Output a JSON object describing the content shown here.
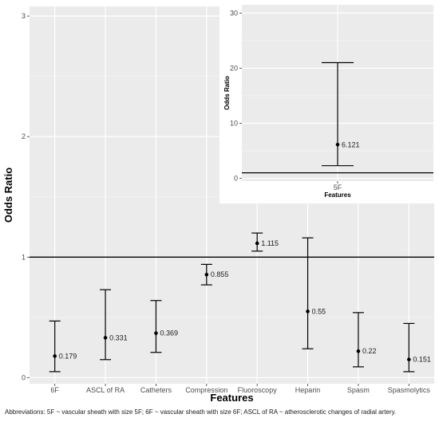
{
  "chart_data": [
    {
      "type": "errorbar",
      "xlabel": "Features",
      "ylabel": "Odds Ratio",
      "ylim": [
        -0.05,
        3.08
      ],
      "yticks": [
        0,
        1,
        2,
        3
      ],
      "reference_line": 1,
      "grid": true,
      "categories": [
        "6F",
        "ASCL of RA",
        "Catheters",
        "Compression",
        "Fluoroscopy",
        "Heparin",
        "Spasm",
        "Spasmolytics"
      ],
      "values": [
        0.179,
        0.331,
        0.369,
        0.855,
        1.115,
        0.55,
        0.22,
        0.151
      ],
      "value_labels": [
        "0.179",
        "0.331",
        "0.369",
        "0.855",
        "1.115",
        "0.55",
        "0.22",
        "0.151"
      ],
      "lower": [
        0.05,
        0.15,
        0.21,
        0.77,
        1.05,
        0.24,
        0.09,
        0.05
      ],
      "upper": [
        0.47,
        0.73,
        0.64,
        0.94,
        1.2,
        1.16,
        0.54,
        0.45
      ]
    },
    {
      "type": "errorbar",
      "xlabel": "Features",
      "ylabel": "Odds Ratio",
      "ylim": [
        -0.5,
        31.5
      ],
      "yticks": [
        0,
        10,
        20,
        30
      ],
      "reference_line": 1,
      "grid": true,
      "categories": [
        "5F"
      ],
      "values": [
        6.121
      ],
      "value_labels": [
        "6.121"
      ],
      "lower": [
        2.3
      ],
      "upper": [
        21
      ]
    }
  ],
  "footnote": "Abbreviations: 5F ~ vascular sheath with size 5F; 6F ~ vascular sheath with size 6F; ASCL of RA ~ atherosclerotic changes of radial artery."
}
